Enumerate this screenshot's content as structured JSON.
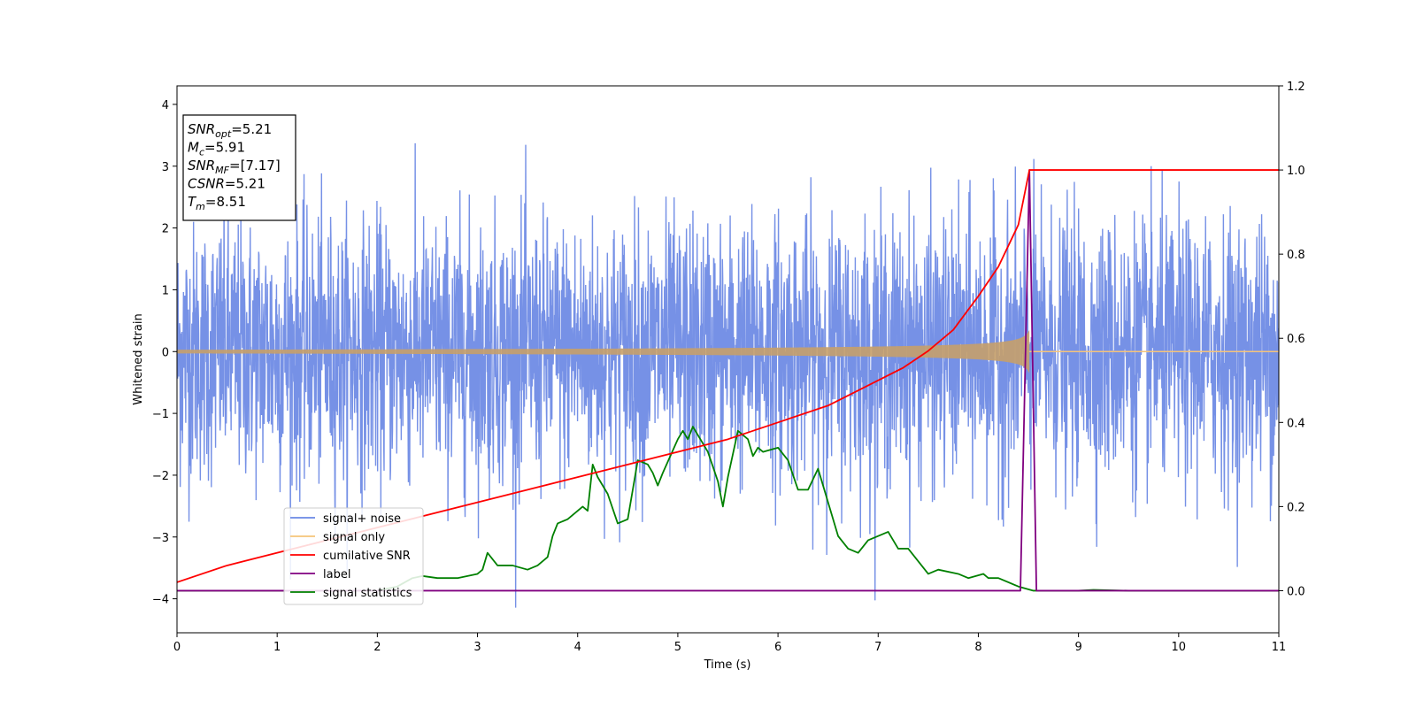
{
  "chart_data": {
    "type": "line",
    "xlabel": "Time (s)",
    "ylabel": "Whitened strain",
    "xlim": [
      0,
      11
    ],
    "ylim_left": [
      -4.55,
      4.3
    ],
    "ylim_right": [
      -0.1,
      1.2
    ],
    "x_ticks": [
      0,
      1,
      2,
      3,
      4,
      5,
      6,
      7,
      8,
      9,
      10,
      11
    ],
    "y_ticks_left": [
      -4,
      -3,
      -2,
      -1,
      0,
      1,
      2,
      3,
      4
    ],
    "y_ticks_right": [
      0.0,
      0.2,
      0.4,
      0.6,
      0.8,
      1.0,
      1.2
    ],
    "grid": false,
    "legend_placement": "lower-left",
    "annotation": {
      "lines": [
        {
          "var": "SNR",
          "sub": "opt",
          "value": "=5.21"
        },
        {
          "var": "M",
          "sub": "c",
          "value": "=5.91"
        },
        {
          "var": "SNR",
          "sub": "MF",
          "value": "=[7.17]"
        },
        {
          "var": "CSNR",
          "sub": "",
          "value": "=5.21"
        },
        {
          "var": "T",
          "sub": "m",
          "value": "=8.51"
        }
      ]
    },
    "series": [
      {
        "name": "signal+ noise",
        "axis": "left",
        "color": "#6a88e4",
        "description": "whitened noise with std ~1 and peaks up to ~3.4"
      },
      {
        "name": "signal only",
        "axis": "left",
        "color": "#f5c47a",
        "chirp_end": 8.51,
        "amplitude_start": 0.03,
        "amplitude_end": 0.35
      },
      {
        "name": "cumilative SNR",
        "axis": "right",
        "color": "#ff0000",
        "x": [
          0,
          0.5,
          1,
          1.5,
          2,
          2.5,
          3,
          3.5,
          4,
          4.5,
          5,
          5.5,
          6,
          6.5,
          7,
          7.25,
          7.5,
          7.75,
          8,
          8.2,
          8.4,
          8.51,
          9,
          10,
          11
        ],
        "y": [
          0.02,
          0.06,
          0.09,
          0.12,
          0.15,
          0.18,
          0.21,
          0.24,
          0.27,
          0.3,
          0.33,
          0.36,
          0.4,
          0.44,
          0.5,
          0.53,
          0.57,
          0.62,
          0.7,
          0.77,
          0.87,
          1.0,
          1.0,
          1.0,
          1.0
        ]
      },
      {
        "name": "label",
        "axis": "right",
        "color": "#800080",
        "x": [
          0,
          8.42,
          8.51,
          8.58,
          11
        ],
        "y": [
          0,
          0,
          1,
          0,
          0
        ]
      },
      {
        "name": "signal statistics",
        "axis": "right",
        "color": "#008000",
        "x": [
          0,
          1,
          2,
          2.2,
          2.35,
          2.45,
          2.6,
          2.8,
          3.0,
          3.05,
          3.1,
          3.2,
          3.35,
          3.5,
          3.6,
          3.7,
          3.75,
          3.8,
          3.9,
          4.0,
          4.05,
          4.1,
          4.15,
          4.2,
          4.3,
          4.4,
          4.5,
          4.6,
          4.7,
          4.75,
          4.8,
          4.85,
          5.0,
          5.05,
          5.1,
          5.15,
          5.2,
          5.3,
          5.4,
          5.45,
          5.5,
          5.6,
          5.7,
          5.75,
          5.8,
          5.85,
          6.0,
          6.1,
          6.2,
          6.3,
          6.4,
          6.5,
          6.6,
          6.7,
          6.8,
          6.9,
          7.0,
          7.1,
          7.2,
          7.3,
          7.5,
          7.6,
          7.8,
          7.9,
          8.05,
          8.1,
          8.2,
          8.4,
          8.55,
          9.0,
          9.15,
          9.5,
          10,
          11
        ],
        "y": [
          0.0,
          0.0,
          0.0,
          0.01,
          0.03,
          0.035,
          0.03,
          0.03,
          0.04,
          0.05,
          0.09,
          0.06,
          0.06,
          0.05,
          0.06,
          0.08,
          0.13,
          0.16,
          0.17,
          0.19,
          0.2,
          0.19,
          0.3,
          0.27,
          0.23,
          0.16,
          0.17,
          0.31,
          0.3,
          0.28,
          0.25,
          0.28,
          0.36,
          0.38,
          0.36,
          0.39,
          0.37,
          0.33,
          0.26,
          0.2,
          0.27,
          0.38,
          0.36,
          0.32,
          0.34,
          0.33,
          0.34,
          0.31,
          0.24,
          0.24,
          0.29,
          0.21,
          0.13,
          0.1,
          0.09,
          0.12,
          0.13,
          0.14,
          0.1,
          0.1,
          0.04,
          0.05,
          0.04,
          0.03,
          0.04,
          0.03,
          0.03,
          0.01,
          0.0,
          0.0,
          0.002,
          0.0,
          0.0,
          0.0
        ]
      }
    ]
  }
}
